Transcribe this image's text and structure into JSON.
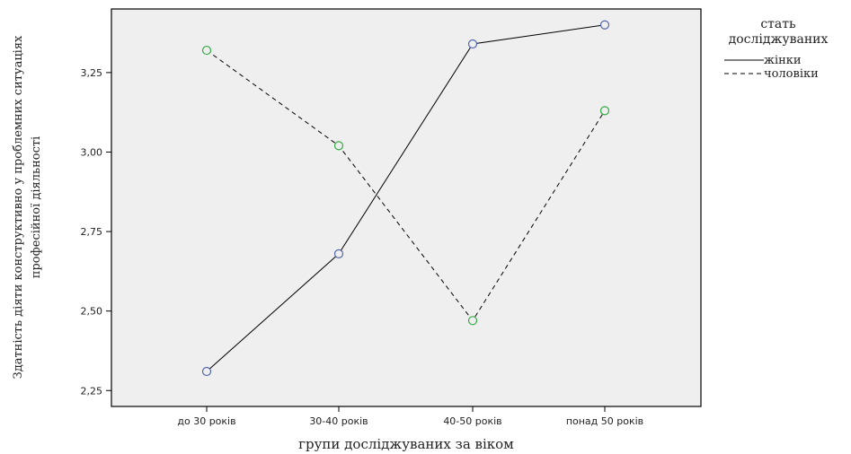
{
  "chart_data": {
    "type": "line",
    "categories": [
      "до 30 років",
      "30-40 років",
      "40-50 років",
      "понад 50 років"
    ],
    "series": [
      {
        "name": "жінки",
        "values": [
          2.31,
          2.68,
          3.34,
          3.4
        ],
        "color": "#000000",
        "dash": "solid",
        "marker_color": "#5566aa"
      },
      {
        "name": "чоловіки",
        "values": [
          3.32,
          3.02,
          2.47,
          3.13
        ],
        "color": "#000000",
        "dash": "dashed",
        "marker_color": "#33aa44"
      }
    ],
    "xlabel": "групи досліджуваних за віком",
    "ylabel_line1": "Здатність діяти конструктивно у проблемних ситуаціях",
    "ylabel_line2": "професійної діяльності",
    "yticks": [
      "2,25",
      "2,50",
      "2,75",
      "3,00",
      "3,25"
    ],
    "ytick_values": [
      2.25,
      2.5,
      2.75,
      3.0,
      3.25
    ],
    "ylim": [
      2.2,
      3.45
    ],
    "legend_title_line1": "стать",
    "legend_title_line2": "досліджуваних",
    "legend_placement": "right",
    "plot_background": "#efefef",
    "grid": false
  }
}
